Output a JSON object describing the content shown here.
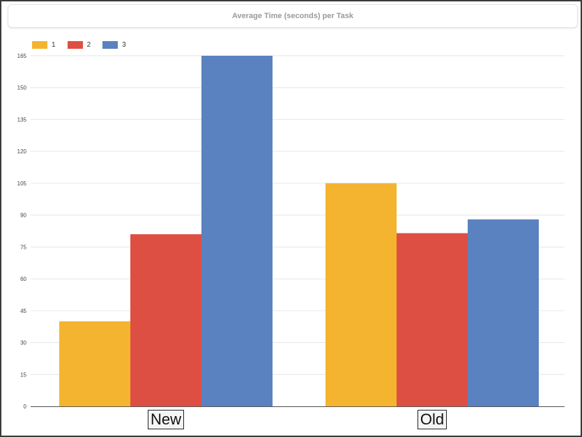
{
  "chart_data": {
    "type": "bar",
    "title": "Average Time (seconds) per Task",
    "categories": [
      "New",
      "Old"
    ],
    "series": [
      {
        "name": "1",
        "color": "#F4B42F",
        "values": [
          40,
          105
        ]
      },
      {
        "name": "2",
        "color": "#DE4F43",
        "values": [
          81,
          81.5
        ]
      },
      {
        "name": "3",
        "color": "#5B82C0",
        "values": [
          165,
          88
        ]
      }
    ],
    "ylim": [
      0,
      165
    ],
    "yticks": [
      0,
      15,
      30,
      45,
      60,
      75,
      90,
      105,
      120,
      135,
      150,
      165
    ],
    "grid": true,
    "legend_position": "top-left",
    "xlabel": "",
    "ylabel": ""
  }
}
